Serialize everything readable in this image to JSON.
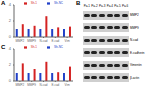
{
  "chart_data": [
    {
      "type": "bar",
      "title": "A",
      "categories": [
        "MMP2",
        "MMP9",
        "N-cad",
        "E-cad",
        "Vim"
      ],
      "series": [
        {
          "name": "Sh-NC",
          "color": "#2140c8",
          "values": [
            1.0,
            1.0,
            1.0,
            1.0,
            1.0
          ]
        },
        {
          "name": "Sh-1",
          "color": "#d42222",
          "values": [
            1.6,
            1.4,
            2.6,
            1.2,
            1.3
          ]
        }
      ],
      "ylim": [
        0,
        4
      ],
      "yticks": [
        0,
        2,
        4
      ],
      "legend": "upper right"
    },
    {
      "type": "bar",
      "title": "C",
      "categories": [
        "MMP2",
        "MMP9",
        "N-cad",
        "E-cad",
        "Vim"
      ],
      "series": [
        {
          "name": "Sh-NC",
          "color": "#2140c8",
          "values": [
            1.0,
            1.0,
            1.0,
            1.0,
            1.0
          ]
        },
        {
          "name": "Sh-1",
          "color": "#d42222",
          "values": [
            2.2,
            1.5,
            2.4,
            1.1,
            1.8
          ]
        }
      ],
      "ylim": [
        0,
        4
      ],
      "yticks": [
        0,
        2,
        4
      ],
      "legend": "upper right"
    }
  ],
  "blot": {
    "title": "B",
    "lanes": [
      "Pa-1",
      "Pa-2",
      "Pa-3",
      "Pa-4",
      "Pa-5",
      "Pa-6"
    ],
    "rows": [
      "MMP2",
      "MMP9",
      "N-cad",
      "E-cadherin",
      "Vimentin",
      "β-actin"
    ]
  }
}
